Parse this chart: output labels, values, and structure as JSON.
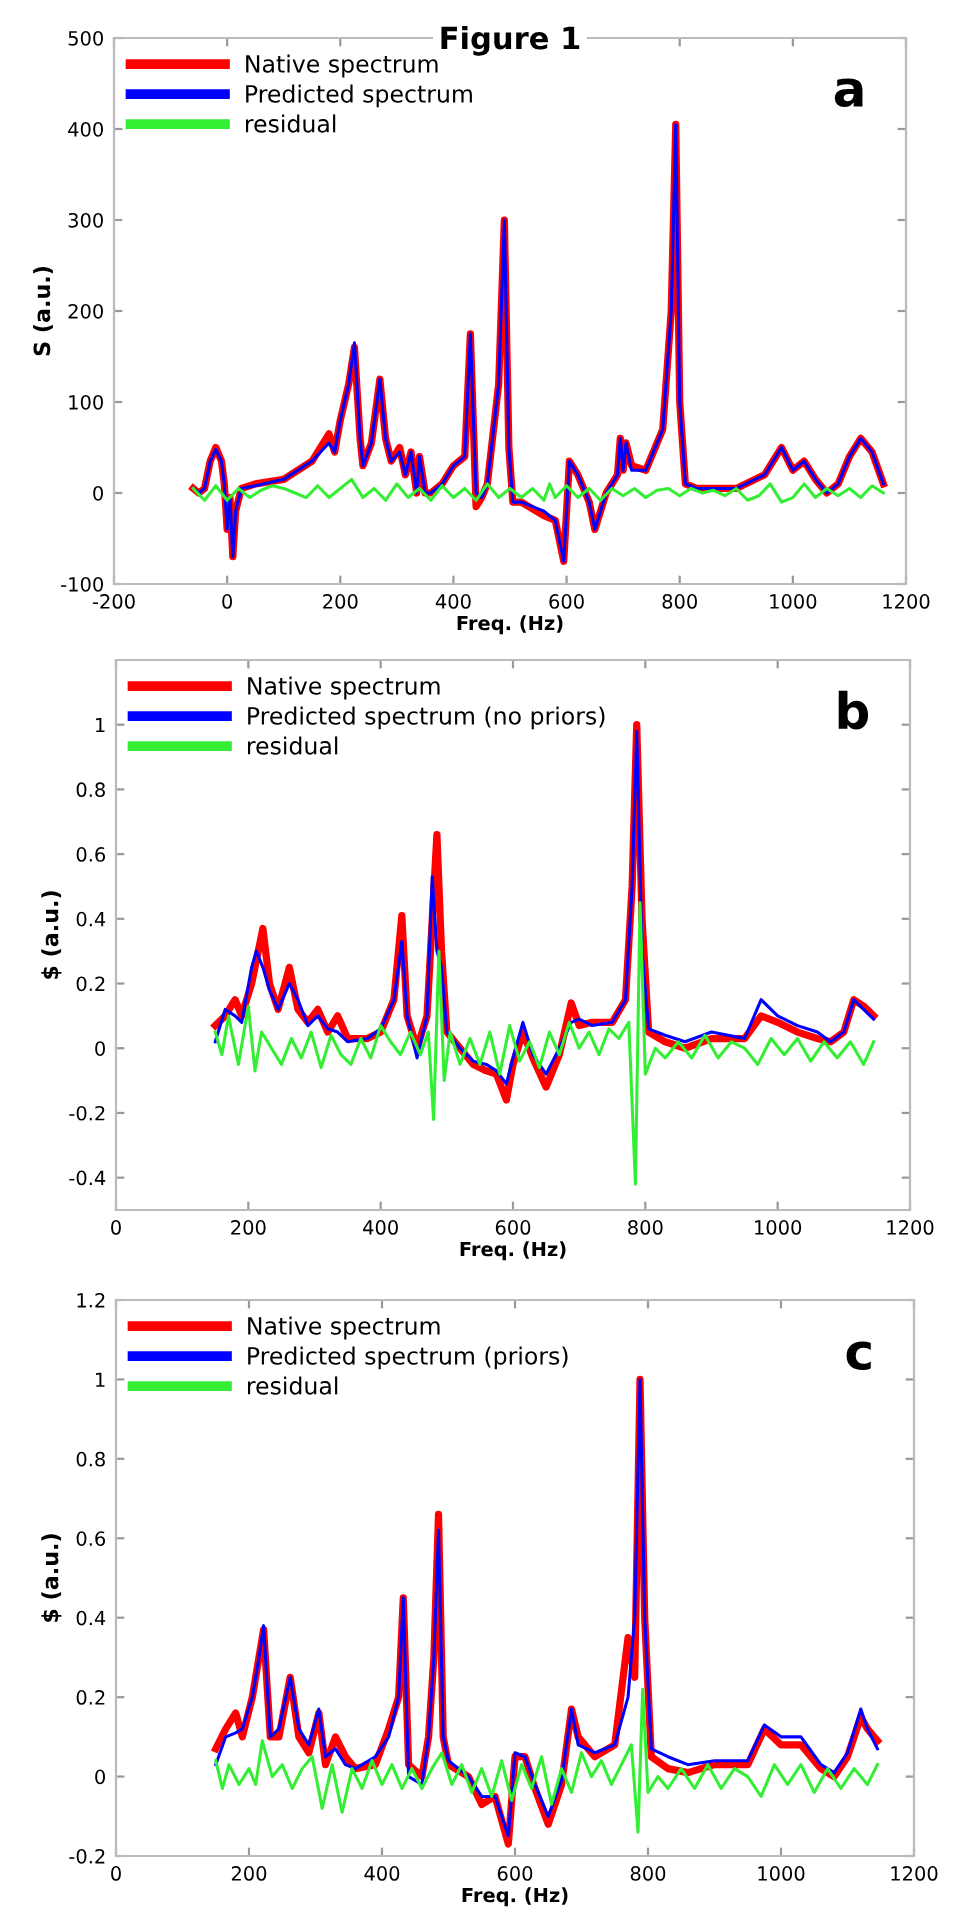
{
  "chart_data": [
    {
      "type": "line",
      "title": "Figure 1",
      "xlabel": "Freq. (Hz)",
      "ylabel": "S (a.u.)",
      "annotations": [
        "a"
      ],
      "legend": "top left",
      "grid": false,
      "marker": "none",
      "line_style": "solid",
      "xlim": [
        -200,
        1200
      ],
      "xticks": [
        -200,
        0,
        200,
        400,
        600,
        800,
        1000,
        1200
      ],
      "ylim": [
        -100,
        500
      ],
      "yticks": [
        -100,
        0,
        100,
        200,
        300,
        400,
        500
      ],
      "series": [
        {
          "name": "Native spectrum",
          "color": "#ff0000",
          "x": [
            -60,
            -50,
            -40,
            -30,
            -20,
            -10,
            -5,
            0,
            5,
            10,
            15,
            25,
            50,
            100,
            150,
            180,
            190,
            200,
            215,
            225,
            235,
            240,
            255,
            270,
            280,
            290,
            305,
            315,
            325,
            335,
            340,
            350,
            360,
            380,
            400,
            420,
            430,
            440,
            450,
            460,
            480,
            490,
            498,
            505,
            520,
            560,
            580,
            595,
            605,
            620,
            640,
            650,
            670,
            690,
            695,
            700,
            705,
            715,
            740,
            770,
            785,
            793,
            800,
            810,
            830,
            900,
            950,
            980,
            1000,
            1020,
            1040,
            1060,
            1080,
            1100,
            1120,
            1140,
            1160
          ],
          "values": [
            5,
            0,
            5,
            35,
            50,
            35,
            10,
            -40,
            -5,
            -70,
            -20,
            5,
            10,
            15,
            35,
            65,
            45,
            80,
            120,
            160,
            60,
            30,
            55,
            125,
            60,
            35,
            50,
            20,
            45,
            0,
            40,
            0,
            0,
            10,
            30,
            40,
            175,
            -15,
            -5,
            10,
            120,
            300,
            50,
            -10,
            -10,
            -25,
            -30,
            -75,
            35,
            20,
            -10,
            -40,
            0,
            20,
            60,
            25,
            55,
            30,
            25,
            70,
            200,
            405,
            100,
            10,
            5,
            5,
            20,
            50,
            25,
            35,
            15,
            0,
            10,
            40,
            60,
            45,
            10
          ]
        },
        {
          "name": "Predicted spectrum",
          "color": "#0000ff",
          "x": [
            -60,
            -50,
            -40,
            -30,
            -20,
            -10,
            -5,
            0,
            5,
            10,
            15,
            25,
            50,
            100,
            150,
            180,
            190,
            200,
            215,
            225,
            235,
            240,
            255,
            270,
            280,
            290,
            305,
            315,
            325,
            335,
            340,
            350,
            360,
            380,
            400,
            420,
            430,
            440,
            450,
            460,
            480,
            490,
            498,
            505,
            520,
            560,
            580,
            595,
            605,
            620,
            640,
            650,
            670,
            690,
            695,
            700,
            705,
            715,
            740,
            770,
            785,
            793,
            800,
            810,
            830,
            900,
            950,
            980,
            1000,
            1020,
            1040,
            1060,
            1080,
            1100,
            1120,
            1140,
            1160
          ],
          "values": [
            5,
            0,
            5,
            35,
            48,
            35,
            10,
            -40,
            -5,
            -70,
            -20,
            5,
            8,
            15,
            35,
            55,
            45,
            80,
            120,
            165,
            60,
            30,
            55,
            125,
            60,
            35,
            45,
            20,
            45,
            0,
            40,
            0,
            0,
            10,
            30,
            40,
            175,
            0,
            -5,
            10,
            120,
            300,
            50,
            -10,
            -10,
            -20,
            -30,
            -75,
            35,
            20,
            -10,
            -40,
            0,
            20,
            60,
            25,
            55,
            25,
            25,
            70,
            200,
            405,
            100,
            10,
            5,
            5,
            20,
            50,
            25,
            35,
            15,
            0,
            10,
            40,
            60,
            45,
            10
          ]
        },
        {
          "name": "residual",
          "color": "#33ee33",
          "x": [
            -60,
            -40,
            -20,
            0,
            20,
            40,
            60,
            80,
            100,
            120,
            140,
            160,
            180,
            200,
            220,
            240,
            260,
            280,
            300,
            320,
            340,
            360,
            380,
            400,
            420,
            440,
            460,
            480,
            500,
            520,
            540,
            560,
            570,
            580,
            600,
            620,
            640,
            660,
            680,
            700,
            720,
            740,
            760,
            780,
            800,
            820,
            840,
            860,
            880,
            900,
            920,
            940,
            960,
            980,
            1000,
            1020,
            1040,
            1060,
            1080,
            1100,
            1120,
            1140,
            1160
          ],
          "values": [
            5,
            -8,
            8,
            -8,
            5,
            -5,
            3,
            8,
            5,
            0,
            -5,
            8,
            -5,
            5,
            15,
            -5,
            5,
            -8,
            10,
            -5,
            5,
            -8,
            8,
            -5,
            5,
            -8,
            10,
            -5,
            5,
            -5,
            5,
            -8,
            10,
            -5,
            8,
            -5,
            5,
            -8,
            5,
            -3,
            5,
            -5,
            3,
            5,
            -3,
            5,
            0,
            3,
            -3,
            5,
            -8,
            -3,
            10,
            -10,
            -5,
            10,
            -5,
            5,
            -3,
            5,
            -5,
            8,
            0
          ]
        }
      ]
    },
    {
      "type": "line",
      "xlabel": "Freq. (Hz)",
      "ylabel": "$ (a.u.)",
      "annotations": [
        "b"
      ],
      "legend": "top left",
      "grid": false,
      "marker": "none",
      "line_style": "solid",
      "xlim": [
        0,
        1200
      ],
      "xticks": [
        0,
        200,
        400,
        600,
        800,
        1000,
        1200
      ],
      "ylim": [
        -0.5,
        1.2
      ],
      "yticks": [
        -0.4,
        -0.2,
        0,
        0.2,
        0.4,
        0.6,
        0.8,
        1
      ],
      "series": [
        {
          "name": "Native spectrum",
          "color": "#ff0000",
          "x": [
            150,
            165,
            180,
            190,
            205,
            215,
            222,
            232,
            245,
            262,
            275,
            290,
            305,
            320,
            335,
            350,
            380,
            400,
            420,
            432,
            440,
            455,
            470,
            478,
            485,
            492,
            500,
            520,
            540,
            560,
            575,
            590,
            600,
            615,
            630,
            650,
            670,
            688,
            700,
            720,
            750,
            770,
            780,
            787,
            795,
            805,
            830,
            860,
            900,
            950,
            975,
            1000,
            1030,
            1060,
            1080,
            1100,
            1115,
            1130,
            1145
          ],
          "values": [
            0.07,
            0.1,
            0.15,
            0.1,
            0.2,
            0.3,
            0.37,
            0.2,
            0.12,
            0.25,
            0.12,
            0.08,
            0.12,
            0.05,
            0.1,
            0.03,
            0.03,
            0.05,
            0.15,
            0.41,
            0.1,
            0.0,
            0.1,
            0.4,
            0.66,
            0.3,
            0.05,
            0.0,
            -0.05,
            -0.07,
            -0.08,
            -0.16,
            -0.05,
            0.05,
            -0.03,
            -0.12,
            -0.02,
            0.14,
            0.07,
            0.08,
            0.08,
            0.15,
            0.5,
            1.0,
            0.4,
            0.05,
            0.02,
            0.0,
            0.03,
            0.03,
            0.1,
            0.08,
            0.05,
            0.03,
            0.02,
            0.05,
            0.15,
            0.13,
            0.1
          ]
        },
        {
          "name": "Predicted spectrum (no priors)",
          "color": "#0000ff",
          "x": [
            150,
            165,
            180,
            190,
            205,
            212,
            222,
            232,
            245,
            262,
            275,
            290,
            305,
            320,
            335,
            350,
            380,
            400,
            420,
            432,
            440,
            455,
            470,
            478,
            485,
            492,
            500,
            520,
            540,
            560,
            575,
            590,
            600,
            615,
            630,
            650,
            670,
            688,
            700,
            720,
            750,
            770,
            780,
            787,
            795,
            805,
            830,
            860,
            900,
            950,
            975,
            1000,
            1030,
            1060,
            1080,
            1100,
            1115,
            1130,
            1145
          ],
          "values": [
            0.02,
            0.12,
            0.1,
            0.08,
            0.25,
            0.3,
            0.25,
            0.18,
            0.12,
            0.2,
            0.15,
            0.07,
            0.1,
            0.06,
            0.05,
            0.02,
            0.03,
            0.06,
            0.15,
            0.33,
            0.1,
            -0.03,
            0.1,
            0.53,
            0.3,
            0.25,
            0.05,
            0.0,
            -0.04,
            -0.05,
            -0.07,
            -0.11,
            -0.03,
            0.08,
            -0.02,
            -0.08,
            0.0,
            0.08,
            0.09,
            0.07,
            0.08,
            0.15,
            0.5,
            0.98,
            0.3,
            0.06,
            0.04,
            0.02,
            0.05,
            0.03,
            0.15,
            0.1,
            0.07,
            0.05,
            0.02,
            0.05,
            0.15,
            0.12,
            0.09
          ]
        },
        {
          "name": "residual",
          "color": "#33ee33",
          "x": [
            150,
            160,
            170,
            185,
            200,
            210,
            220,
            235,
            250,
            265,
            280,
            295,
            310,
            325,
            340,
            355,
            370,
            385,
            400,
            415,
            430,
            445,
            460,
            472,
            480,
            488,
            496,
            505,
            520,
            535,
            550,
            565,
            580,
            595,
            610,
            625,
            640,
            655,
            670,
            685,
            700,
            715,
            730,
            745,
            760,
            775,
            785,
            792,
            800,
            815,
            830,
            850,
            870,
            890,
            910,
            930,
            950,
            970,
            990,
            1010,
            1030,
            1050,
            1070,
            1090,
            1110,
            1130,
            1145
          ],
          "values": [
            0.05,
            -0.02,
            0.1,
            -0.05,
            0.13,
            -0.07,
            0.05,
            0.0,
            -0.05,
            0.03,
            -0.03,
            0.05,
            -0.06,
            0.04,
            -0.02,
            -0.05,
            0.03,
            -0.03,
            0.07,
            0.02,
            -0.02,
            0.05,
            -0.02,
            0.05,
            -0.22,
            0.3,
            -0.1,
            0.05,
            -0.05,
            0.03,
            -0.05,
            0.05,
            -0.08,
            0.07,
            -0.04,
            0.02,
            -0.06,
            0.05,
            -0.02,
            0.08,
            0.0,
            0.05,
            -0.02,
            0.06,
            0.03,
            0.08,
            -0.42,
            0.45,
            -0.08,
            0.0,
            -0.03,
            0.02,
            -0.03,
            0.04,
            -0.03,
            0.02,
            0.0,
            -0.05,
            0.03,
            -0.02,
            0.03,
            -0.04,
            0.02,
            -0.03,
            0.02,
            -0.05,
            0.02
          ]
        }
      ]
    },
    {
      "type": "line",
      "xlabel": "Freq. (Hz)",
      "ylabel": "$ (a.u.)",
      "annotations": [
        "c"
      ],
      "legend": "top left",
      "grid": false,
      "marker": "none",
      "line_style": "solid",
      "xlim": [
        0,
        1200
      ],
      "xticks": [
        0,
        200,
        400,
        600,
        800,
        1000,
        1200
      ],
      "ylim": [
        -0.2,
        1.2
      ],
      "yticks": [
        -0.2,
        0,
        0.2,
        0.4,
        0.6,
        0.8,
        1,
        1.2
      ],
      "series": [
        {
          "name": "Native spectrum",
          "color": "#ff0000",
          "x": [
            150,
            165,
            180,
            190,
            205,
            215,
            222,
            232,
            245,
            262,
            275,
            290,
            305,
            315,
            330,
            345,
            360,
            390,
            410,
            425,
            432,
            440,
            460,
            470,
            478,
            485,
            492,
            500,
            530,
            550,
            570,
            590,
            600,
            615,
            630,
            650,
            670,
            685,
            695,
            720,
            750,
            770,
            780,
            788,
            795,
            805,
            830,
            860,
            900,
            950,
            975,
            1000,
            1030,
            1060,
            1080,
            1100,
            1120,
            1130,
            1145
          ],
          "values": [
            0.07,
            0.12,
            0.16,
            0.1,
            0.2,
            0.3,
            0.37,
            0.1,
            0.1,
            0.25,
            0.1,
            0.06,
            0.16,
            0.03,
            0.1,
            0.05,
            0.02,
            0.03,
            0.12,
            0.2,
            0.45,
            0.03,
            0.0,
            0.1,
            0.3,
            0.66,
            0.1,
            0.03,
            0.0,
            -0.07,
            -0.05,
            -0.17,
            0.05,
            0.05,
            -0.03,
            -0.12,
            -0.02,
            0.17,
            0.1,
            0.05,
            0.08,
            0.35,
            0.25,
            1.0,
            0.4,
            0.05,
            0.02,
            0.01,
            0.03,
            0.03,
            0.12,
            0.08,
            0.08,
            0.02,
            0.0,
            0.05,
            0.15,
            0.12,
            0.09
          ]
        },
        {
          "name": "Predicted spectrum (priors)",
          "color": "#0000ff",
          "x": [
            150,
            165,
            180,
            190,
            205,
            215,
            222,
            232,
            245,
            262,
            275,
            290,
            305,
            315,
            330,
            345,
            360,
            390,
            410,
            425,
            432,
            440,
            460,
            470,
            478,
            485,
            492,
            500,
            530,
            550,
            570,
            590,
            600,
            615,
            630,
            650,
            670,
            685,
            695,
            720,
            750,
            770,
            780,
            788,
            795,
            805,
            830,
            860,
            900,
            950,
            975,
            1000,
            1030,
            1060,
            1080,
            1100,
            1120,
            1130,
            1145
          ],
          "values": [
            0.03,
            0.1,
            0.11,
            0.12,
            0.2,
            0.3,
            0.38,
            0.1,
            0.12,
            0.25,
            0.12,
            0.08,
            0.17,
            0.05,
            0.07,
            0.03,
            0.02,
            0.05,
            0.1,
            0.2,
            0.45,
            0.0,
            -0.02,
            0.1,
            0.3,
            0.62,
            0.1,
            0.04,
            0.0,
            -0.05,
            -0.05,
            -0.15,
            0.06,
            0.05,
            -0.02,
            -0.1,
            -0.01,
            0.17,
            0.08,
            0.06,
            0.08,
            0.2,
            0.4,
            1.0,
            0.4,
            0.07,
            0.05,
            0.03,
            0.04,
            0.04,
            0.13,
            0.1,
            0.1,
            0.03,
            0.01,
            0.06,
            0.17,
            0.12,
            0.07
          ]
        },
        {
          "name": "residual",
          "color": "#33ee33",
          "x": [
            150,
            160,
            170,
            185,
            200,
            210,
            220,
            235,
            250,
            265,
            280,
            295,
            310,
            325,
            340,
            355,
            370,
            385,
            400,
            415,
            430,
            445,
            460,
            475,
            490,
            505,
            520,
            535,
            550,
            565,
            580,
            595,
            610,
            625,
            640,
            655,
            670,
            685,
            700,
            715,
            730,
            745,
            760,
            775,
            785,
            792,
            800,
            815,
            830,
            850,
            870,
            890,
            910,
            930,
            950,
            970,
            990,
            1010,
            1030,
            1050,
            1070,
            1090,
            1110,
            1130,
            1145
          ],
          "values": [
            0.04,
            -0.03,
            0.03,
            -0.02,
            0.02,
            -0.02,
            0.09,
            0.0,
            0.03,
            -0.03,
            0.02,
            0.05,
            -0.08,
            0.03,
            -0.09,
            0.02,
            -0.03,
            0.04,
            -0.02,
            0.03,
            -0.03,
            0.02,
            -0.03,
            0.02,
            0.06,
            -0.02,
            0.03,
            -0.04,
            0.02,
            -0.05,
            0.04,
            -0.06,
            0.03,
            -0.03,
            0.05,
            -0.07,
            0.02,
            -0.04,
            0.06,
            0.0,
            0.04,
            -0.02,
            0.03,
            0.08,
            -0.14,
            0.22,
            -0.04,
            0.0,
            -0.03,
            0.02,
            -0.03,
            0.03,
            -0.03,
            0.02,
            0.0,
            -0.05,
            0.03,
            -0.02,
            0.03,
            -0.04,
            0.02,
            -0.03,
            0.02,
            -0.02,
            0.03
          ]
        }
      ]
    }
  ]
}
